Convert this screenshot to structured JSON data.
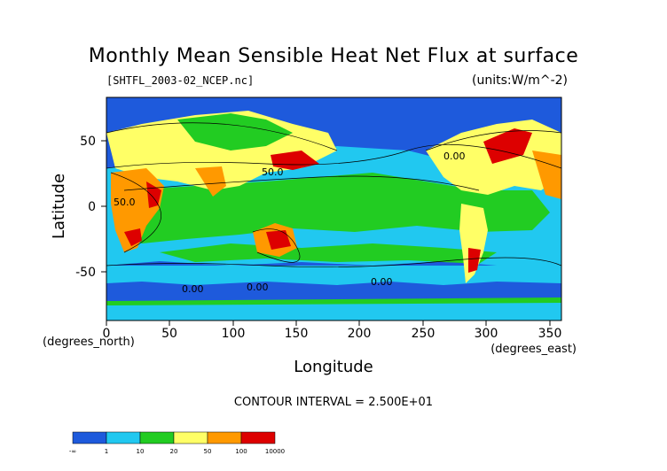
{
  "title": "Monthly Mean Sensible Heat Net Flux at surface",
  "file_label": "[SHTFL_2003-02_NCEP.nc]",
  "units_label": "(units:W/m^-2)",
  "xlabel": "Longitude",
  "ylabel": "Latitude",
  "x_unit_note": "(degrees_east)",
  "y_unit_note": "(degrees_north)",
  "x_ticks": [
    "0",
    "50",
    "100",
    "150",
    "200",
    "250",
    "300",
    "350"
  ],
  "y_ticks": [
    "50",
    "0",
    "-50"
  ],
  "contour_interval": "CONTOUR INTERVAL = 2.500E+01",
  "contour_labels": [
    "50.0",
    "0.00",
    "0.00",
    "0.00",
    "0.00",
    "50.0"
  ],
  "legend": {
    "colors": [
      "#1e5adc",
      "#21c8f0",
      "#22cc22",
      "#ffff66",
      "#ff9900",
      "#dd0000"
    ],
    "labels": [
      "-∞",
      "1",
      "10",
      "20",
      "50",
      "100",
      "10000"
    ]
  },
  "chart_data": {
    "type": "heatmap",
    "title": "Monthly Mean Sensible Heat Net Flux at surface",
    "xlabel": "Longitude",
    "ylabel": "Latitude",
    "xlim": [
      0,
      360
    ],
    "ylim": [
      -90,
      90
    ],
    "units": "W/m^-2",
    "color_bins": [
      "-∞",
      "1",
      "10",
      "20",
      "50",
      "100",
      "10000"
    ]
  }
}
